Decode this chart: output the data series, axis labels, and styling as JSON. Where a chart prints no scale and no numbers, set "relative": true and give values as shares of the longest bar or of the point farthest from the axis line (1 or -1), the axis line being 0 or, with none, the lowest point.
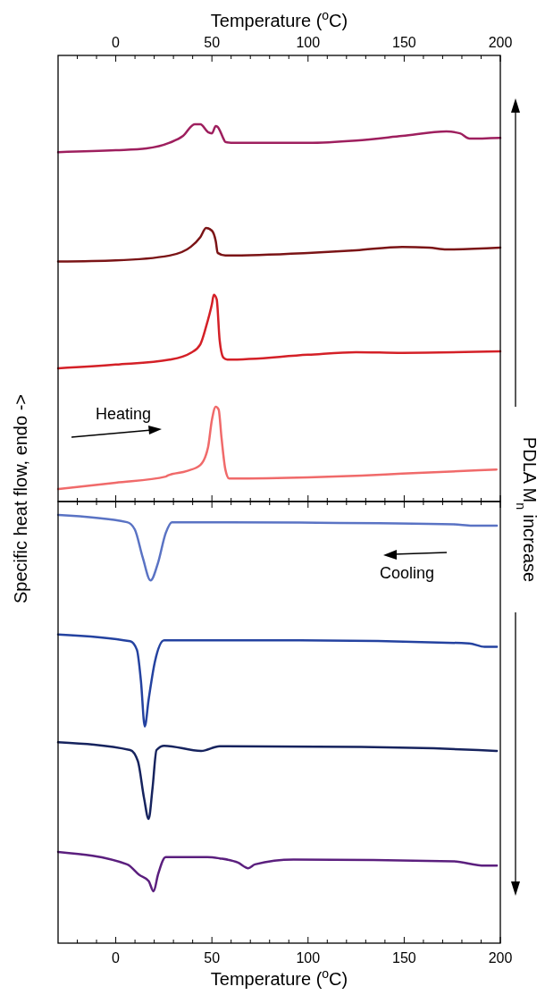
{
  "chart_data": [
    {
      "type": "line",
      "relative": true,
      "xlabel": "Temperature ($^{o}$C)",
      "ylabel": "Specific heat flow, endo ->",
      "xlim": [
        -30,
        200
      ],
      "xticks": [
        {
          "value": -20,
          "label": null
        },
        {
          "value": -10,
          "label": null
        },
        0,
        {
          "value": 10,
          "label": null
        },
        {
          "value": 20,
          "label": null
        },
        {
          "value": 30,
          "label": null
        },
        {
          "value": 40,
          "label": null
        },
        50,
        {
          "value": 60,
          "label": null
        },
        {
          "value": 70,
          "label": null
        },
        {
          "value": 80,
          "label": null
        },
        {
          "value": 90,
          "label": null
        },
        100,
        {
          "value": 110,
          "label": null
        },
        {
          "value": 120,
          "label": null
        },
        {
          "value": 130,
          "label": null
        },
        {
          "value": 140,
          "label": null
        },
        150,
        {
          "value": 160,
          "label": null
        },
        {
          "value": 170,
          "label": null
        },
        {
          "value": 180,
          "label": null
        },
        {
          "value": 190,
          "label": null
        },
        200
      ],
      "tick_labels": "x",
      "marker": "none",
      "line_style": "solid",
      "annotations": [
        "Heating",
        "PDLA M$_{n}$ increase"
      ],
      "series": [
        {
          "color": "#9e1f5e",
          "x": [
            -30,
            0,
            16,
            28,
            35,
            41,
            44,
            48,
            50,
            52,
            53,
            56,
            57,
            60,
            100,
            125,
            149,
            172,
            179,
            184,
            200
          ],
          "values": [
            0.926,
            0.931,
            0.936,
            0.951,
            0.969,
            1,
            1,
            0.979,
            0.976,
            0.995,
            0.993,
            0.962,
            0.953,
            0.951,
            0.951,
            0.957,
            0.969,
            0.981,
            0.976,
            0.962,
            0.964
          ]
        },
        {
          "color": "#7b1416",
          "x": [
            -30,
            0,
            28,
            39,
            44,
            47,
            50,
            52,
            53,
            57,
            100,
            125,
            149,
            163,
            172,
            200
          ],
          "values": [
            0.636,
            0.639,
            0.652,
            0.675,
            0.701,
            0.725,
            0.718,
            0.69,
            0.659,
            0.652,
            0.659,
            0.666,
            0.675,
            0.673,
            0.668,
            0.673
          ]
        },
        {
          "color": "#d42027",
          "x": [
            -30,
            0,
            28,
            39,
            44,
            47,
            50,
            51,
            52.5,
            54,
            56,
            58,
            100,
            125,
            149,
            200
          ],
          "values": [
            0.353,
            0.363,
            0.376,
            0.394,
            0.417,
            0.464,
            0.523,
            0.548,
            0.536,
            0.429,
            0.381,
            0.376,
            0.389,
            0.396,
            0.394,
            0.398
          ]
        },
        {
          "color": "#f06a6a",
          "x": [
            -30,
            0,
            26,
            27,
            37,
            44,
            48,
            50,
            52,
            53.5,
            55,
            57,
            59,
            100,
            128,
            149,
            198
          ],
          "values": [
            0.033,
            0.05,
            0.066,
            0.069,
            0.081,
            0.097,
            0.144,
            0.216,
            0.251,
            0.244,
            0.169,
            0.085,
            0.061,
            0.064,
            0.069,
            0.074,
            0.085
          ]
        }
      ]
    },
    {
      "type": "line",
      "relative": true,
      "xlabel": "Temperature ($^{o}$C)",
      "xlim": [
        -30,
        200
      ],
      "xticks": [
        {
          "value": -20,
          "label": null
        },
        {
          "value": -10,
          "label": null
        },
        0,
        {
          "value": 10,
          "label": null
        },
        {
          "value": 20,
          "label": null
        },
        {
          "value": 30,
          "label": null
        },
        {
          "value": 40,
          "label": null
        },
        50,
        {
          "value": 60,
          "label": null
        },
        {
          "value": 70,
          "label": null
        },
        {
          "value": 80,
          "label": null
        },
        {
          "value": 90,
          "label": null
        },
        100,
        {
          "value": 110,
          "label": null
        },
        {
          "value": 120,
          "label": null
        },
        {
          "value": 130,
          "label": null
        },
        {
          "value": 140,
          "label": null
        },
        150,
        {
          "value": 160,
          "label": null
        },
        {
          "value": 170,
          "label": null
        },
        {
          "value": 180,
          "label": null
        },
        {
          "value": 190,
          "label": null
        },
        200
      ],
      "tick_labels": "x",
      "marker": "none",
      "line_style": "solid",
      "annotations": [
        "Cooling"
      ],
      "series": [
        {
          "color": "#5a73c4",
          "x": [
            -30,
            5.9,
            9.9,
            14.0,
            18.1,
            21.9,
            26.0,
            29.2,
            95.7,
            175.8,
            185.4,
            198.2
          ],
          "values": [
            1,
            0.983,
            0.966,
            0.901,
            0.847,
            0.887,
            0.958,
            0.983,
            0.982,
            0.978,
            0.975,
            0.975
          ]
        },
        {
          "color": "#2442a0",
          "x": [
            -30,
            7.5,
            11.0,
            13.1,
            15.1,
            17.1,
            20.3,
            25.2,
            95.7,
            183.8,
            191.8,
            198.2
          ],
          "values": [
            0.721,
            0.705,
            0.685,
            0.612,
            0.506,
            0.569,
            0.656,
            0.707,
            0.707,
            0.7,
            0.692,
            0.692
          ]
        },
        {
          "color": "#16235e",
          "x": [
            -30,
            7.5,
            11.5,
            14.7,
            17.1,
            19.1,
            21.2,
            25.2,
            44.4,
            54.0,
            127.7,
            188.6,
            198.2
          ],
          "values": [
            0.469,
            0.451,
            0.425,
            0.339,
            0.29,
            0.361,
            0.451,
            0.461,
            0.449,
            0.46,
            0.458,
            0.451,
            0.449
          ]
        },
        {
          "color": "#5b1f7e",
          "x": [
            -30,
            5.9,
            12.3,
            17.1,
            19.7,
            21.9,
            26.0,
            47.6,
            54.0,
            63.6,
            68.9,
            72.4,
            92.5,
            175.8,
            191.8,
            198.2
          ],
          "values": [
            0.213,
            0.184,
            0.159,
            0.145,
            0.121,
            0.159,
            0.201,
            0.201,
            0.198,
            0.188,
            0.175,
            0.184,
            0.195,
            0.191,
            0.181,
            0.181
          ]
        }
      ]
    }
  ]
}
